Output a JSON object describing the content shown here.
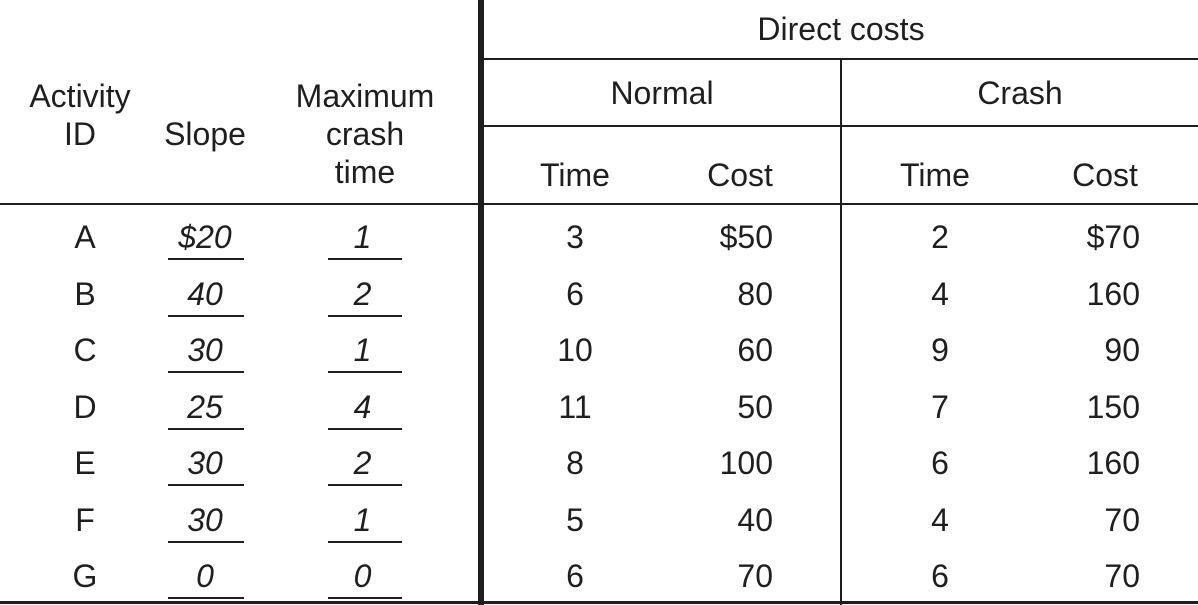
{
  "header": {
    "activity_id": "Activity ID",
    "slope": "Slope",
    "max_crash_time": "Maximum crash time",
    "direct_costs": "Direct costs",
    "normal": "Normal",
    "crash": "Crash",
    "time": "Time",
    "cost": "Cost"
  },
  "rows": [
    {
      "id": "A",
      "slope": "$20",
      "max_crash": "1",
      "normal_time": "3",
      "normal_cost": "$50",
      "crash_time": "2",
      "crash_cost": "$70"
    },
    {
      "id": "B",
      "slope": "40",
      "max_crash": "2",
      "normal_time": "6",
      "normal_cost": "80",
      "crash_time": "4",
      "crash_cost": "160"
    },
    {
      "id": "C",
      "slope": "30",
      "max_crash": "1",
      "normal_time": "10",
      "normal_cost": "60",
      "crash_time": "9",
      "crash_cost": "90"
    },
    {
      "id": "D",
      "slope": "25",
      "max_crash": "4",
      "normal_time": "11",
      "normal_cost": "50",
      "crash_time": "7",
      "crash_cost": "150"
    },
    {
      "id": "E",
      "slope": "30",
      "max_crash": "2",
      "normal_time": "8",
      "normal_cost": "100",
      "crash_time": "6",
      "crash_cost": "160"
    },
    {
      "id": "F",
      "slope": "30",
      "max_crash": "1",
      "normal_time": "5",
      "normal_cost": "40",
      "crash_time": "4",
      "crash_cost": "70"
    },
    {
      "id": "G",
      "slope": "0",
      "max_crash": "0",
      "normal_time": "6",
      "normal_cost": "70",
      "crash_time": "6",
      "crash_cost": "70"
    }
  ]
}
